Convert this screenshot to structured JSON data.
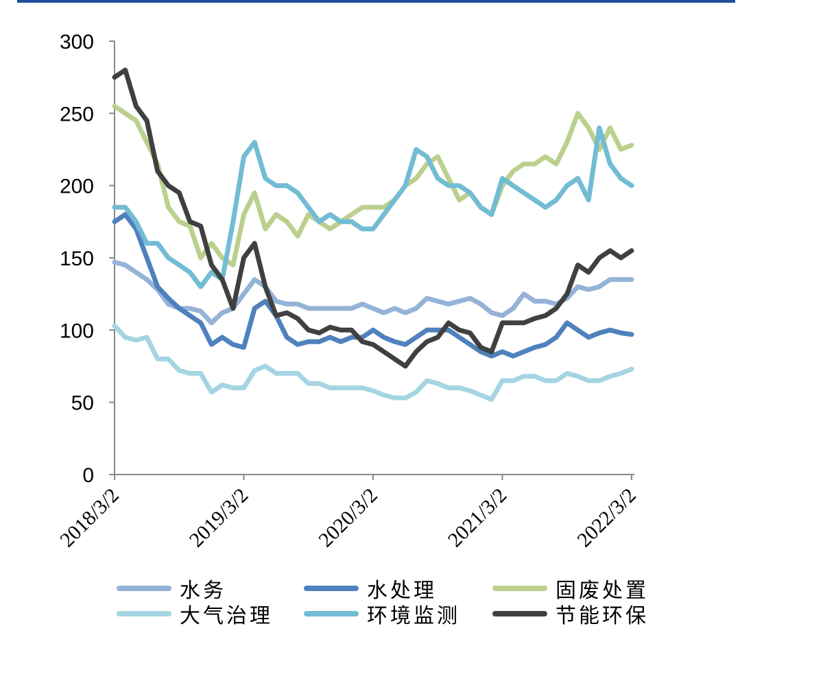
{
  "chart_data": {
    "type": "line",
    "title": "",
    "xlabel": "",
    "ylabel": "",
    "ylim": [
      0,
      300
    ],
    "yticks": [
      "0",
      "50",
      "100",
      "150",
      "200",
      "250",
      "300"
    ],
    "xticks": [
      "2018/3/2",
      "2019/3/2",
      "2020/3/2",
      "2021/3/2",
      "2022/3/2"
    ],
    "x_note": "monthly samples from 2018/3 to 2022/3",
    "legend_position": "bottom",
    "series": [
      {
        "name": "水务",
        "color": "#95b3d7",
        "values": [
          147,
          145,
          140,
          135,
          128,
          118,
          115,
          115,
          113,
          105,
          112,
          115,
          125,
          135,
          130,
          120,
          118,
          118,
          115,
          115,
          115,
          115,
          115,
          118,
          115,
          112,
          115,
          112,
          115,
          122,
          120,
          118,
          120,
          122,
          118,
          112,
          110,
          115,
          125,
          120,
          120,
          118,
          122,
          130,
          128,
          130,
          135,
          135,
          135
        ]
      },
      {
        "name": "水处理",
        "color": "#4f81bd",
        "values": [
          175,
          180,
          170,
          150,
          130,
          122,
          115,
          110,
          105,
          90,
          95,
          90,
          88,
          115,
          120,
          110,
          95,
          90,
          92,
          92,
          95,
          92,
          95,
          95,
          100,
          95,
          92,
          90,
          95,
          100,
          100,
          100,
          95,
          90,
          85,
          82,
          85,
          82,
          85,
          88,
          90,
          95,
          105,
          100,
          95,
          98,
          100,
          98,
          97
        ]
      },
      {
        "name": "固废处置",
        "color": "#bcd08e",
        "values": [
          255,
          250,
          245,
          230,
          215,
          185,
          175,
          172,
          150,
          160,
          150,
          145,
          180,
          195,
          170,
          180,
          175,
          165,
          180,
          175,
          170,
          175,
          180,
          185,
          185,
          185,
          190,
          200,
          205,
          215,
          220,
          205,
          190,
          195,
          185,
          180,
          200,
          210,
          215,
          215,
          220,
          215,
          230,
          250,
          240,
          225,
          240,
          225,
          228
        ]
      },
      {
        "name": "大气治理",
        "color": "#a5d5e2",
        "values": [
          103,
          95,
          93,
          95,
          80,
          80,
          72,
          70,
          70,
          57,
          62,
          60,
          60,
          72,
          75,
          70,
          70,
          70,
          63,
          63,
          60,
          60,
          60,
          60,
          58,
          55,
          53,
          53,
          57,
          65,
          63,
          60,
          60,
          58,
          55,
          52,
          65,
          65,
          68,
          68,
          65,
          65,
          70,
          68,
          65,
          65,
          68,
          70,
          73
        ]
      },
      {
        "name": "环境监测",
        "color": "#72bcd4",
        "values": [
          185,
          185,
          175,
          160,
          160,
          150,
          145,
          140,
          130,
          140,
          135,
          175,
          220,
          230,
          205,
          200,
          200,
          195,
          185,
          175,
          180,
          175,
          175,
          170,
          170,
          180,
          190,
          200,
          225,
          220,
          205,
          200,
          200,
          195,
          185,
          180,
          205,
          200,
          195,
          190,
          185,
          190,
          200,
          205,
          190,
          240,
          215,
          205,
          200
        ]
      },
      {
        "name": "节能环保",
        "color": "#404040",
        "values": [
          275,
          280,
          255,
          245,
          210,
          200,
          195,
          175,
          172,
          145,
          135,
          115,
          150,
          160,
          130,
          110,
          112,
          108,
          100,
          98,
          102,
          100,
          100,
          92,
          90,
          85,
          80,
          75,
          85,
          92,
          95,
          105,
          100,
          98,
          88,
          85,
          105,
          105,
          105,
          108,
          110,
          115,
          125,
          145,
          140,
          150,
          155,
          150,
          155
        ]
      }
    ]
  }
}
